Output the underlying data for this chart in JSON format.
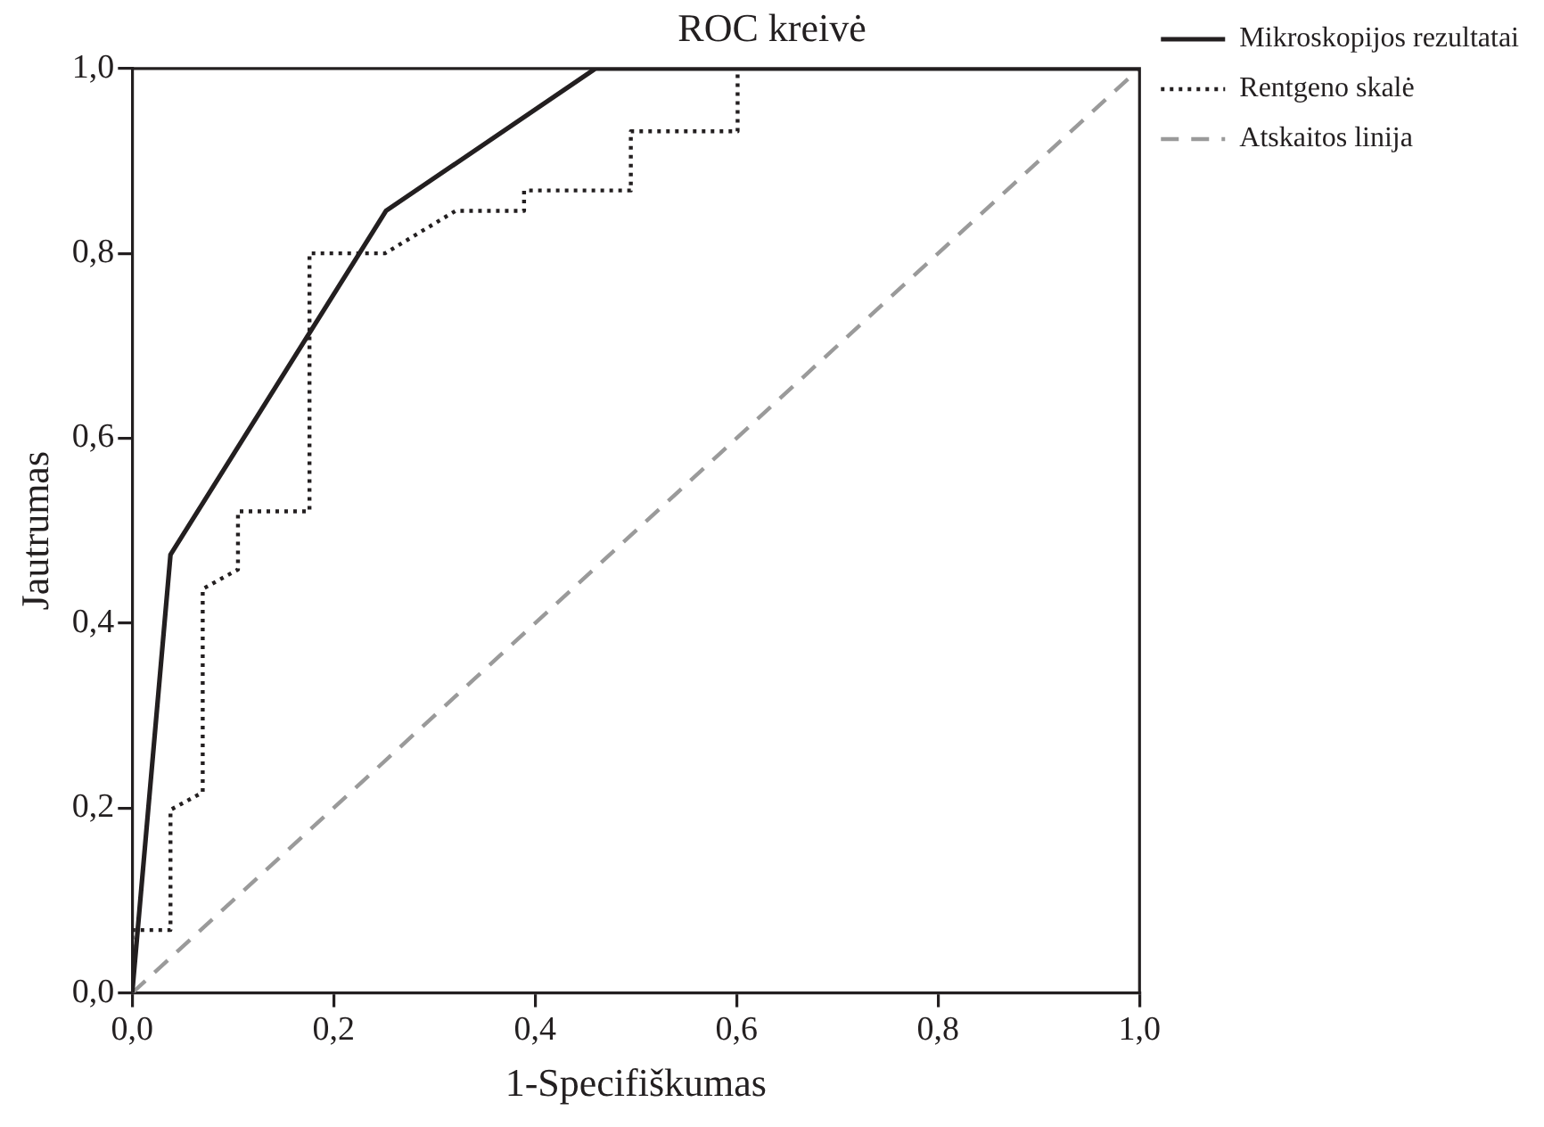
{
  "chart_data": {
    "type": "line",
    "title": "ROC kreivė",
    "xlabel": "1-Specifiškumas",
    "ylabel": "Jautrumas",
    "xlim": [
      0,
      1
    ],
    "ylim": [
      0,
      1
    ],
    "xticks": [
      {
        "value": 0,
        "label": "0,0"
      },
      {
        "value": 0.2,
        "label": "0,2"
      },
      {
        "value": 0.4,
        "label": "0,4"
      },
      {
        "value": 0.6,
        "label": "0,6"
      },
      {
        "value": 0.8,
        "label": "0,8"
      },
      {
        "value": 1,
        "label": "1,0"
      }
    ],
    "yticks": [
      {
        "value": 0,
        "label": "0,0"
      },
      {
        "value": 0.2,
        "label": "0,2"
      },
      {
        "value": 0.4,
        "label": "0,4"
      },
      {
        "value": 0.6,
        "label": "0,6"
      },
      {
        "value": 0.8,
        "label": "0,8"
      },
      {
        "value": 1,
        "label": "1,0"
      }
    ],
    "grid": false,
    "legend": "top right",
    "marker": "none",
    "series": [
      {
        "name": "Mikroskopijos rezultatai",
        "color": "#231f20",
        "line_style": "solid",
        "x": [
          0,
          0.038,
          0.252,
          0.46,
          1
        ],
        "values": [
          0,
          0.474,
          0.846,
          1,
          1
        ]
      },
      {
        "name": "Rentgeno skalė",
        "color": "#231f20",
        "line_style": "dotted",
        "x": [
          0,
          0,
          0.038,
          0.038,
          0.07,
          0.07,
          0.105,
          0.105,
          0.176,
          0.176,
          0.251,
          0.321,
          0.389,
          0.389,
          0.495,
          0.495,
          0.601,
          0.601,
          1
        ],
        "values": [
          0,
          0.068,
          0.068,
          0.198,
          0.217,
          0.437,
          0.458,
          0.521,
          0.521,
          0.8,
          0.8,
          0.846,
          0.846,
          0.868,
          0.868,
          0.932,
          0.932,
          1,
          1
        ]
      },
      {
        "name": "Atskaitos linija",
        "color": "#9a9a9a",
        "line_style": "dashed",
        "x": [
          0,
          1
        ],
        "values": [
          0,
          1
        ]
      }
    ]
  }
}
